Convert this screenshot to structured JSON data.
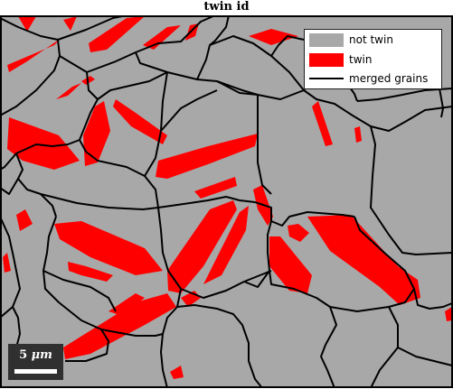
{
  "title": "twin id",
  "colors": {
    "not_twin": "#a8a8a8",
    "twin": "#ff0000",
    "boundary": "#000000",
    "scalebar_bg": "#303030"
  },
  "legend": {
    "items": [
      {
        "label": "not twin",
        "kind": "fill",
        "color": "#a8a8a8"
      },
      {
        "label": "twin",
        "kind": "fill",
        "color": "#ff0000"
      },
      {
        "label": "merged grains",
        "kind": "line",
        "color": "#000000"
      }
    ]
  },
  "scalebar": {
    "value": "5",
    "unit": "μm"
  }
}
